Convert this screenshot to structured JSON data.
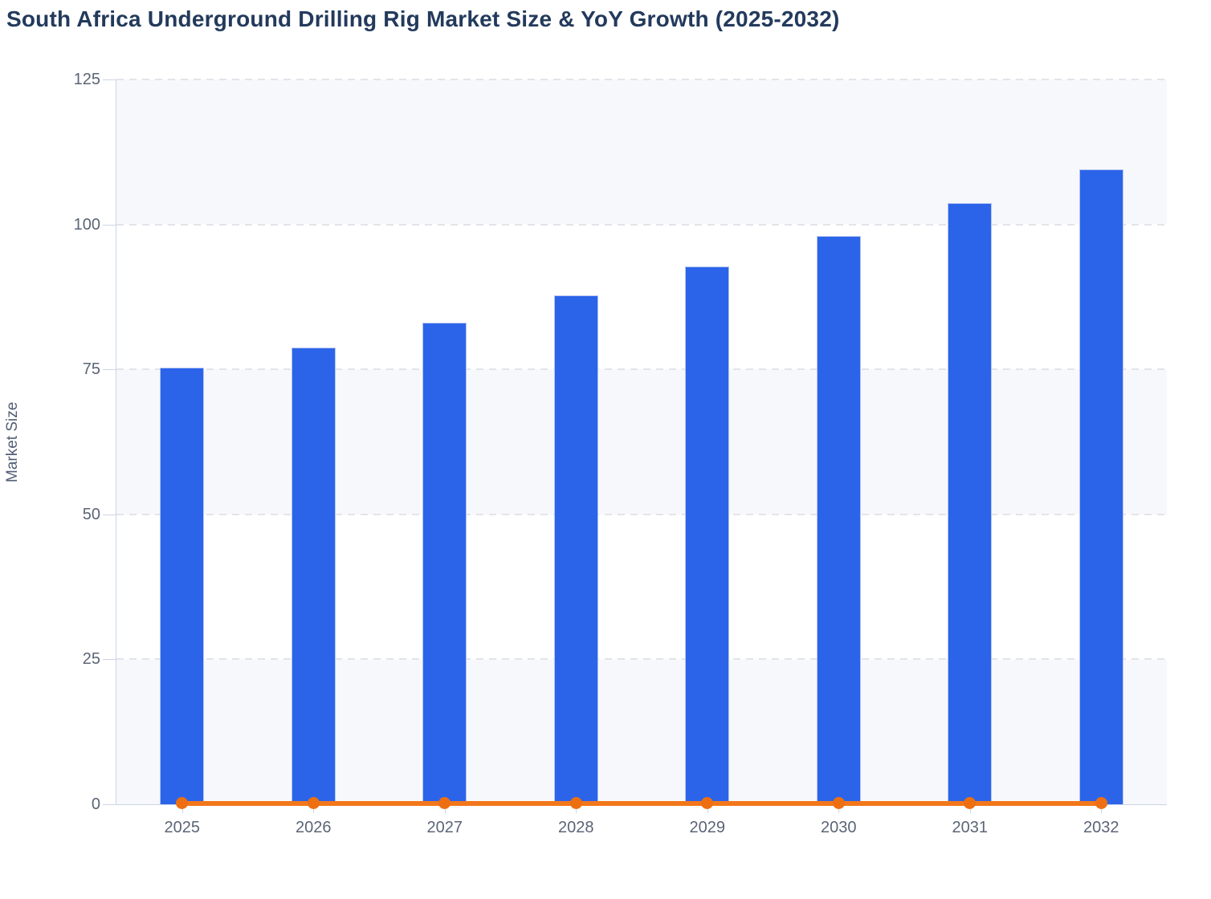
{
  "page": {
    "background": "#ffffff"
  },
  "chart_data": {
    "type": "combo",
    "title": "South Africa Underground Drilling Rig Market Size & YoY Growth (2025-2032)",
    "xlabel": "",
    "ylabel": "Market Size",
    "categories": [
      "2025",
      "2026",
      "2027",
      "2028",
      "2029",
      "2030",
      "2031",
      "2032"
    ],
    "series": [
      {
        "name": "Market Size",
        "type": "bar",
        "color": "#2b64e9",
        "values": [
          75.3,
          78.8,
          83.0,
          87.8,
          92.7,
          98.0,
          103.7,
          109.5
        ]
      },
      {
        "name": "YoY Growth",
        "type": "line",
        "color": "#f2771b",
        "marker_color": "#ee6f12",
        "values": [
          0,
          0.047,
          0.053,
          0.058,
          0.056,
          0.057,
          0.058,
          0.056
        ]
      }
    ],
    "ylim": [
      0,
      125
    ],
    "yticks": [
      0,
      25,
      50,
      75,
      100,
      125
    ],
    "grid": "horizontal-dashed",
    "legend": "none",
    "plot_background_bands": [
      "#f7f8fb",
      "#ffffff"
    ],
    "axis_color": "#ccd4e8",
    "tick_label_color": "#5b6576",
    "title_color": "#233a5c"
  }
}
